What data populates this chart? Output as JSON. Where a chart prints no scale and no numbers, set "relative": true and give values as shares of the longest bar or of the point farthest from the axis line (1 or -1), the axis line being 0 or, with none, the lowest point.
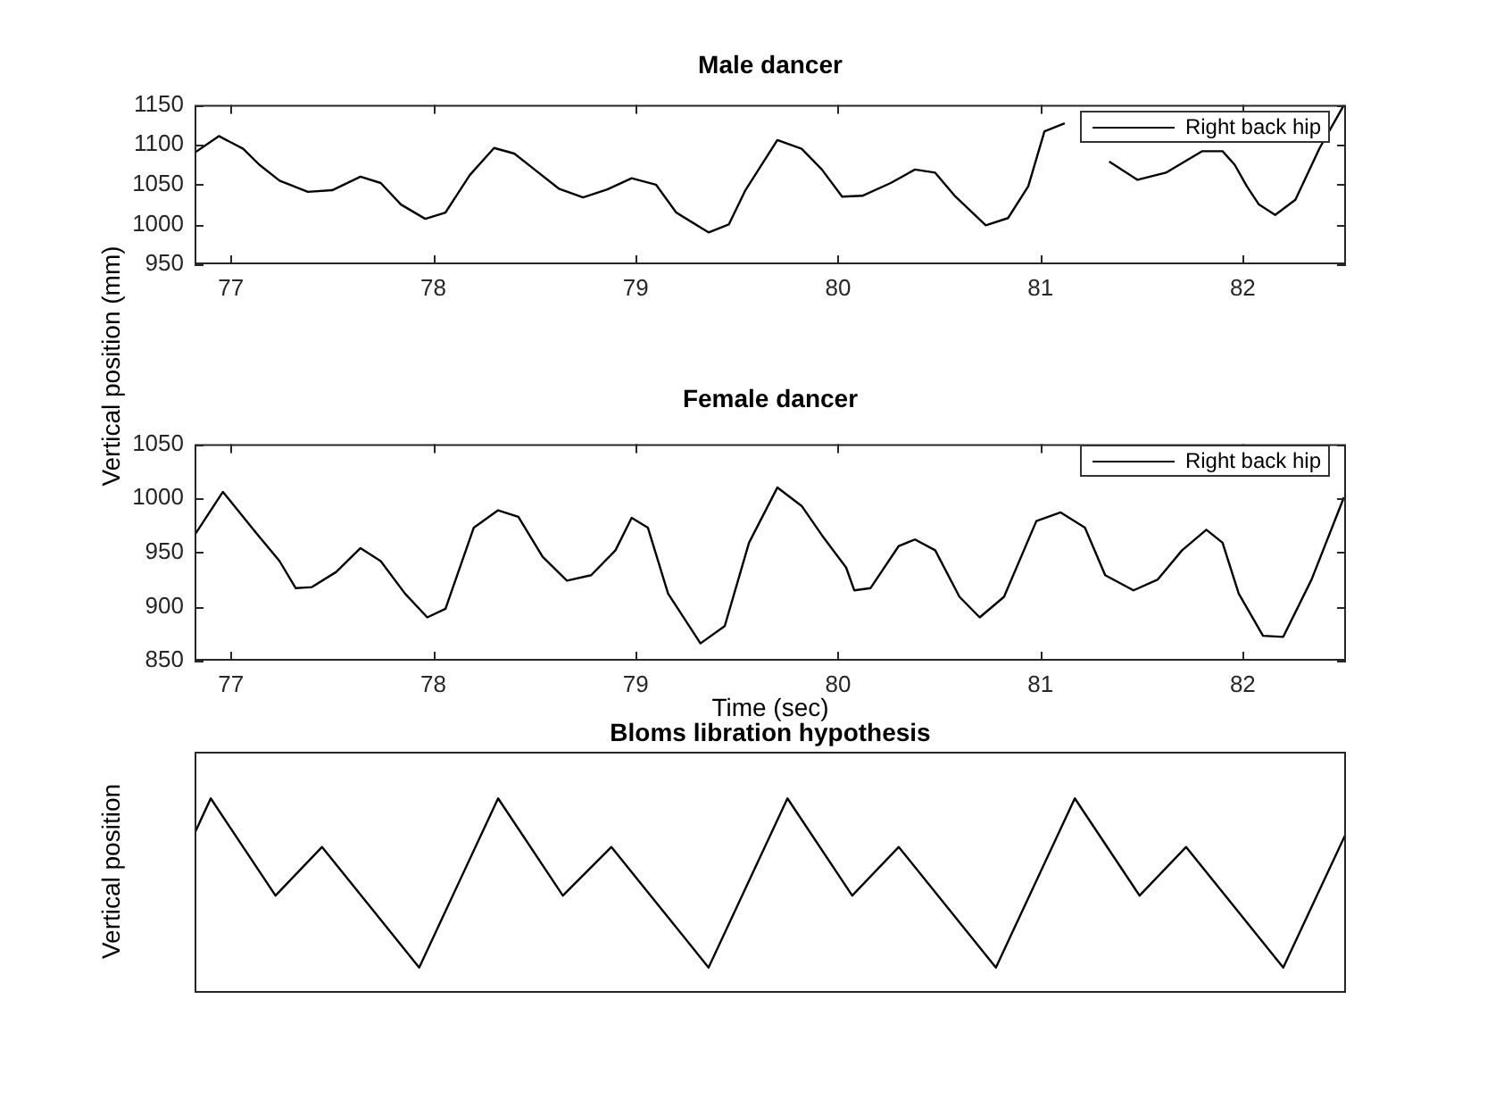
{
  "chart_data": [
    {
      "type": "line",
      "title": "Male dancer",
      "ylabel": "Vertical position (mm)",
      "legend": "top right",
      "marker": "none",
      "grid": false,
      "xlim": [
        76.82,
        82.51
      ],
      "ylim": [
        950,
        1150
      ],
      "xticks": [
        77,
        78,
        79,
        80,
        81,
        82
      ],
      "yticks": [
        950,
        1000,
        1050,
        1100,
        1150
      ],
      "x": [
        76.82,
        76.94,
        77.06,
        77.14,
        77.24,
        77.38,
        77.5,
        77.64,
        77.74,
        77.84,
        77.96,
        78.06,
        78.18,
        78.3,
        78.4,
        78.5,
        78.62,
        78.74,
        78.86,
        78.98,
        79.1,
        79.2,
        79.36,
        79.46,
        79.54,
        79.7,
        79.82,
        79.92,
        80.02,
        80.12,
        80.26,
        80.38,
        80.48,
        80.58,
        80.73,
        80.84,
        80.94,
        81.02,
        81.12,
        81.22,
        81.34,
        81.48,
        81.62,
        81.8,
        81.9,
        81.96,
        82.02,
        82.08,
        82.16,
        82.26,
        82.38,
        82.5
      ],
      "series": [
        {
          "name": "Right back hip",
          "color": "#000000",
          "values": [
            1090,
            1111,
            1095,
            1075,
            1055,
            1041,
            1043,
            1060,
            1052,
            1025,
            1007,
            1015,
            1062,
            1096,
            1089,
            1069,
            1045,
            1034,
            1044,
            1058,
            1050,
            1015,
            990,
            1000,
            1042,
            1106,
            1095,
            1069,
            1035,
            1036,
            1052,
            1069,
            1065,
            1035,
            999,
            1008,
            1048,
            1117,
            1127,
            null,
            1079,
            1056,
            1065,
            1092,
            1092,
            1075,
            1048,
            1025,
            1012,
            1031,
            1096,
            1150
          ]
        }
      ]
    },
    {
      "type": "line",
      "title": "Female dancer",
      "xlabel": "Time (sec)",
      "legend": "top right",
      "marker": "none",
      "grid": false,
      "xlim": [
        76.82,
        82.51
      ],
      "ylim": [
        850,
        1050
      ],
      "xticks": [
        77,
        78,
        79,
        80,
        81,
        82
      ],
      "yticks": [
        850,
        900,
        950,
        1000,
        1050
      ],
      "x": [
        76.82,
        76.96,
        77.12,
        77.24,
        77.32,
        77.4,
        77.52,
        77.64,
        77.74,
        77.86,
        77.97,
        78.06,
        78.2,
        78.32,
        78.42,
        78.54,
        78.66,
        78.78,
        78.9,
        78.98,
        79.06,
        79.16,
        79.32,
        79.44,
        79.56,
        79.7,
        79.82,
        79.92,
        80.04,
        80.08,
        80.16,
        80.3,
        80.38,
        80.48,
        80.6,
        80.7,
        80.82,
        80.98,
        81.1,
        81.22,
        81.32,
        81.46,
        81.58,
        81.7,
        81.82,
        81.9,
        81.98,
        82.1,
        82.2,
        82.34,
        82.5
      ],
      "series": [
        {
          "name": "Right back hip",
          "color": "#000000",
          "values": [
            966,
            1006,
            969,
            942,
            917,
            918,
            932,
            954,
            942,
            912,
            890,
            898,
            973,
            989,
            983,
            946,
            924,
            929,
            952,
            982,
            973,
            912,
            866,
            882,
            959,
            1010,
            993,
            966,
            936,
            915,
            917,
            956,
            962,
            952,
            909,
            890,
            909,
            979,
            987,
            973,
            929,
            915,
            925,
            952,
            971,
            959,
            912,
            873,
            872,
            925,
            1001
          ]
        }
      ]
    },
    {
      "type": "line",
      "title": "Bloms libration hypothesis",
      "ylabel": "Vertical position",
      "relative": true,
      "marker": "none",
      "tick_labels": false,
      "xlim": [
        76.82,
        82.51
      ],
      "x": [
        76.82,
        76.9,
        77.22,
        77.45,
        77.93,
        78.32,
        78.64,
        78.88,
        79.36,
        79.75,
        80.07,
        80.3,
        80.78,
        81.17,
        81.49,
        81.72,
        82.2,
        82.51
      ],
      "series": [
        {
          "color": "#000000",
          "values": [
            0.82,
            1,
            0.5,
            0.75,
            0.13,
            1,
            0.5,
            0.75,
            0.13,
            1,
            0.5,
            0.75,
            0.13,
            1,
            0.5,
            0.75,
            0.13,
            0.82
          ]
        }
      ]
    }
  ]
}
